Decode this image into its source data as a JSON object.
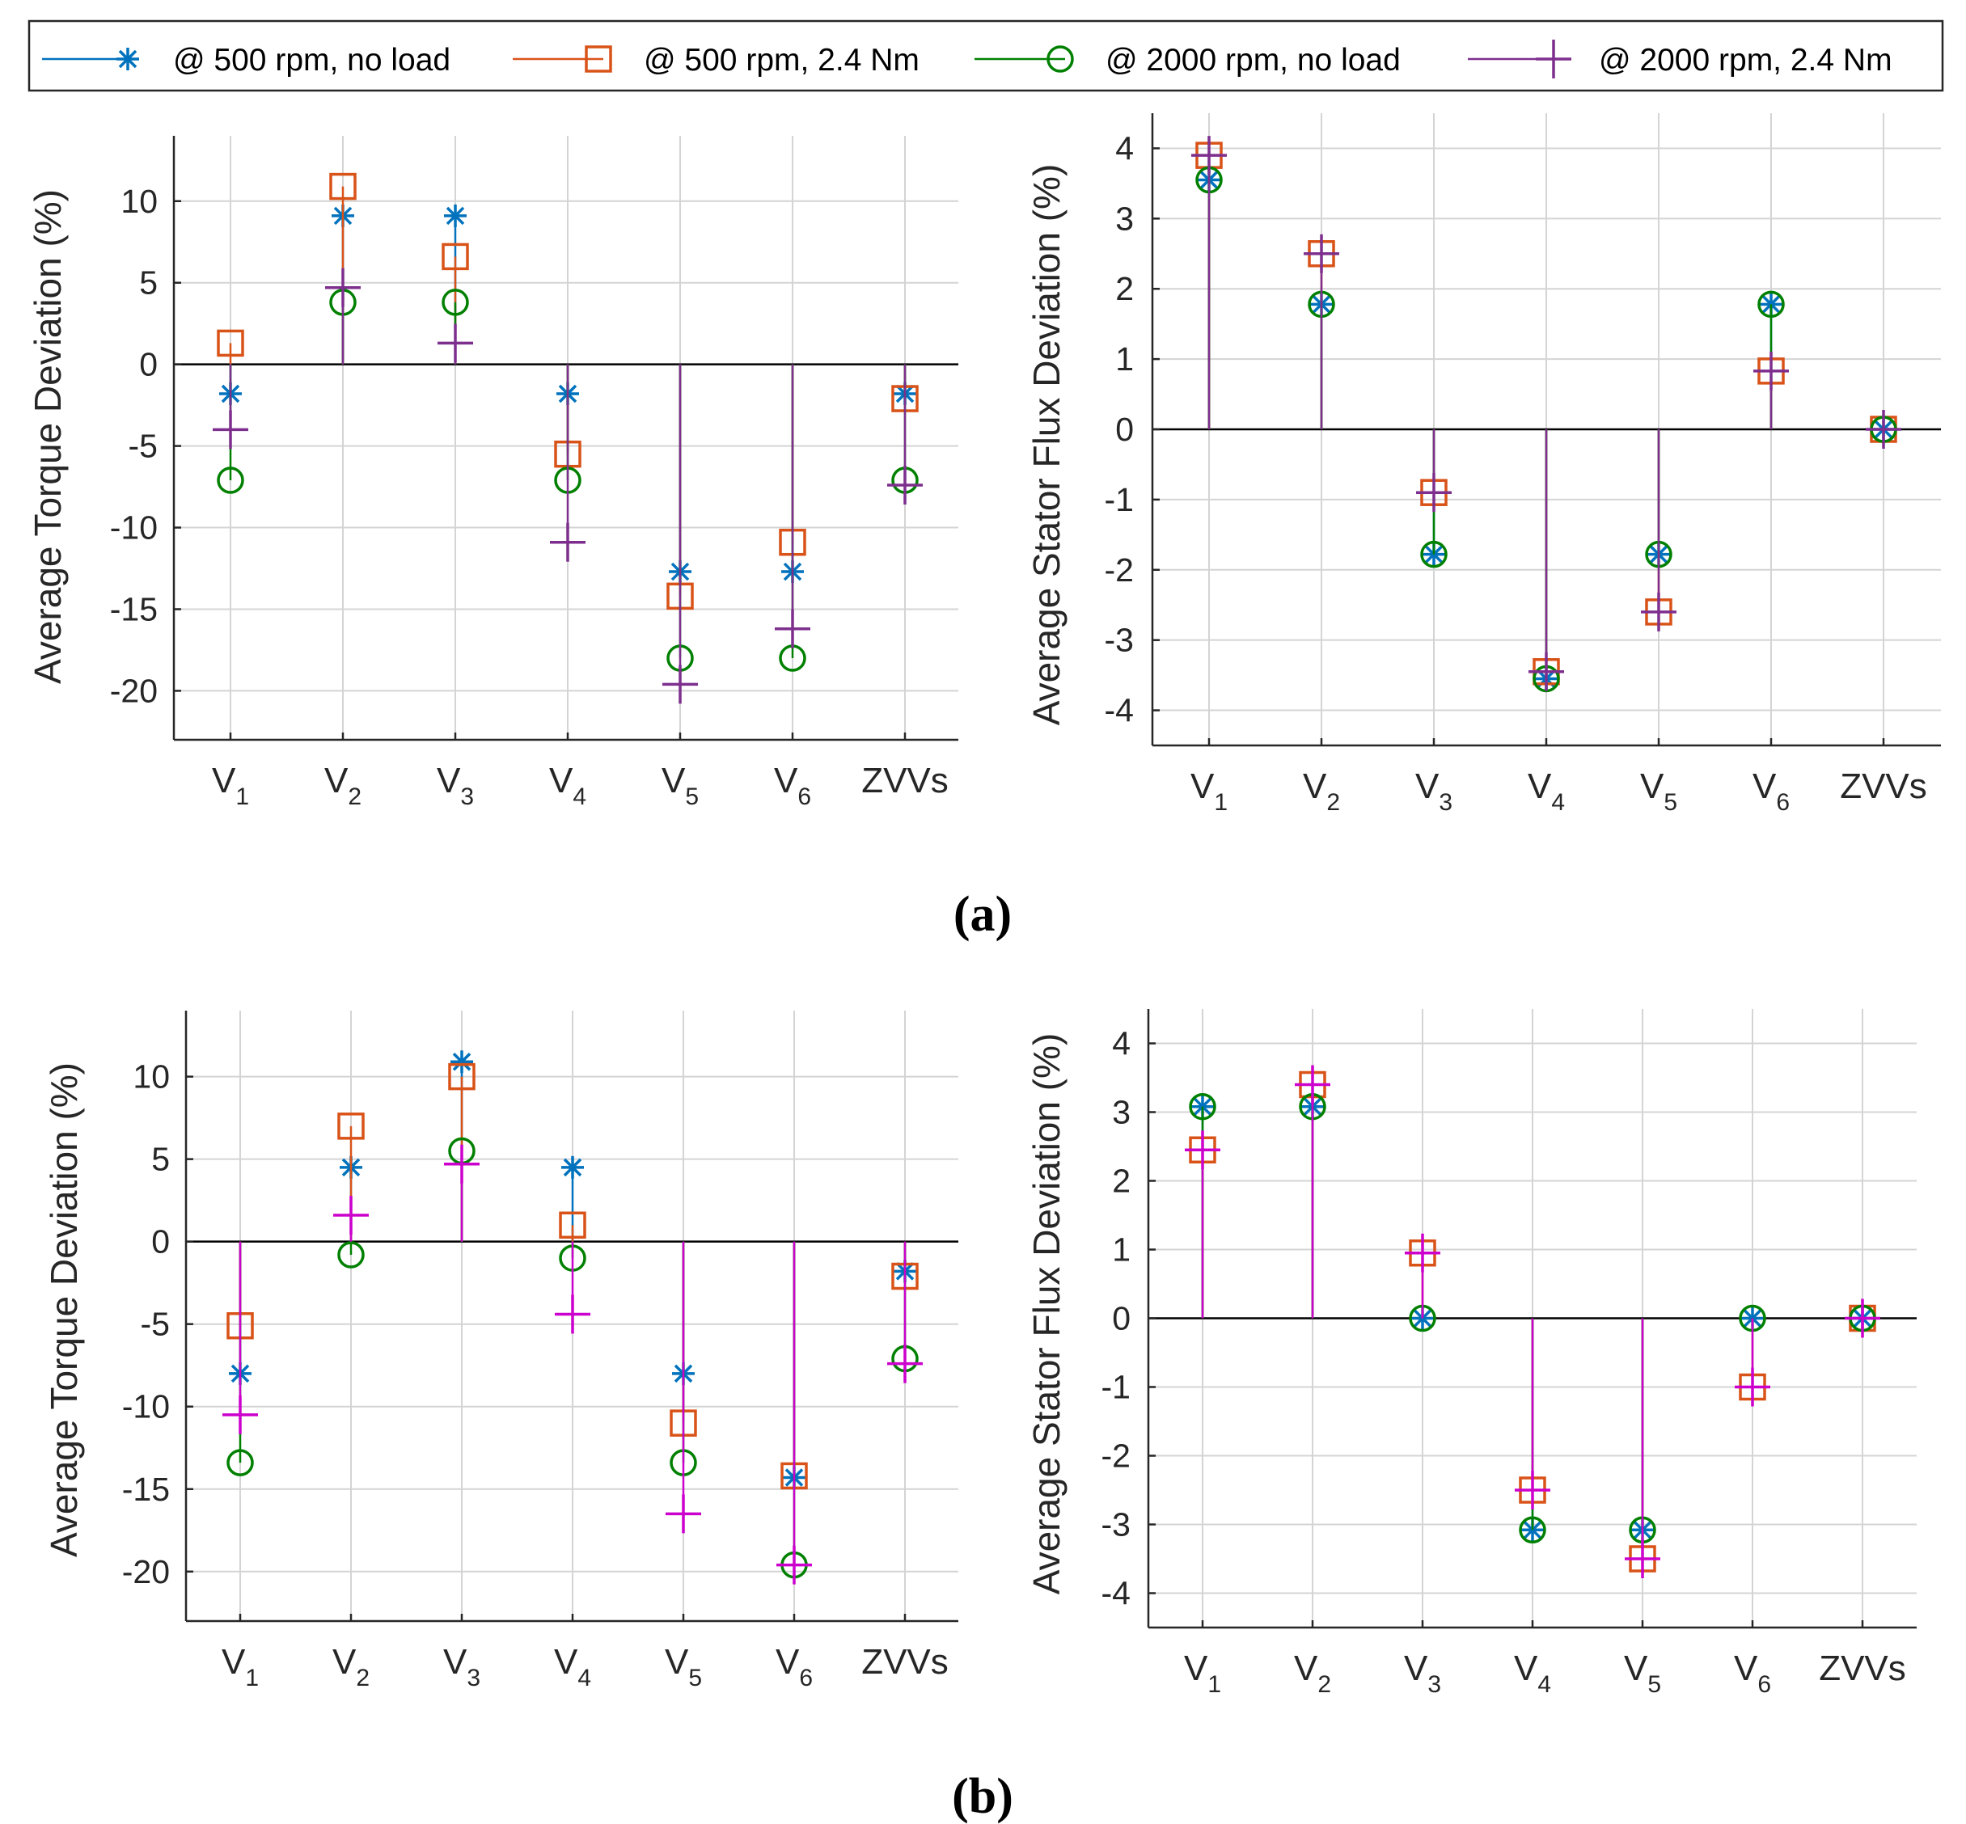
{
  "colors": {
    "s500_noload": "#0072BD",
    "s500_load": "#D95319",
    "s2000_noload": "#008000",
    "s2000_load": "#7E2F8E",
    "s2000_load_alt": "#CC00CC",
    "axis": "#262626",
    "grid": "#d4d4d4",
    "zero_line": "#000000"
  },
  "legend": {
    "entries": [
      {
        "label": "@ 500 rpm, no load",
        "marker": "asterisk",
        "color_key": "s500_noload"
      },
      {
        "label": "@ 500 rpm, 2.4 Nm",
        "marker": "square",
        "color_key": "s500_load"
      },
      {
        "label": "@ 2000 rpm, no load",
        "marker": "circle",
        "color_key": "s2000_noload"
      },
      {
        "label": "@ 2000 rpm, 2.4 Nm",
        "marker": "plus",
        "color_key": "s2000_load"
      }
    ]
  },
  "panel_labels": {
    "a": "(a)",
    "b": "(b)"
  },
  "chart_data": [
    {
      "id": "a-torque",
      "panel": "a",
      "type": "stem",
      "title": "",
      "ylabel": "Average Torque Deviation (%)",
      "xlabel": "",
      "categories": [
        {
          "main": "V",
          "sub": "1"
        },
        {
          "main": "V",
          "sub": "2"
        },
        {
          "main": "V",
          "sub": "3"
        },
        {
          "main": "V",
          "sub": "4"
        },
        {
          "main": "V",
          "sub": "5"
        },
        {
          "main": "V",
          "sub": "6"
        },
        {
          "main": "ZVVs",
          "sub": ""
        }
      ],
      "ylim": [
        -23,
        14
      ],
      "yticks": [
        10,
        5,
        0,
        -5,
        -10,
        -15,
        -20
      ],
      "ytick_labels": [
        "10",
        "5",
        "0",
        "-5",
        "-10",
        "-15",
        "-20"
      ],
      "grid": true,
      "series": [
        {
          "name": "@ 500 rpm, no load",
          "marker": "asterisk",
          "color_key": "s500_noload",
          "values": [
            -1.8,
            9.1,
            9.1,
            -1.8,
            -12.7,
            -12.7,
            -1.8
          ]
        },
        {
          "name": "@ 500 rpm, 2.4 Nm",
          "marker": "square",
          "color_key": "s500_load",
          "values": [
            1.3,
            10.9,
            6.6,
            -5.5,
            -14.2,
            -10.9,
            -2.1
          ]
        },
        {
          "name": "@ 2000 rpm, no load",
          "marker": "circle",
          "color_key": "s2000_noload",
          "values": [
            -7.1,
            3.8,
            3.8,
            -7.1,
            -18.0,
            -18.0,
            -7.1
          ]
        },
        {
          "name": "@ 2000 rpm, 2.4 Nm",
          "marker": "plus",
          "color_key": "s2000_load",
          "values": [
            -4.0,
            4.7,
            1.3,
            -10.9,
            -19.6,
            -16.2,
            -7.4
          ]
        }
      ]
    },
    {
      "id": "a-flux",
      "panel": "a",
      "type": "stem",
      "title": "",
      "ylabel": "Average Stator Flux Deviation (%)",
      "xlabel": "",
      "categories": [
        {
          "main": "V",
          "sub": "1"
        },
        {
          "main": "V",
          "sub": "2"
        },
        {
          "main": "V",
          "sub": "3"
        },
        {
          "main": "V",
          "sub": "4"
        },
        {
          "main": "V",
          "sub": "5"
        },
        {
          "main": "V",
          "sub": "6"
        },
        {
          "main": "ZVVs",
          "sub": ""
        }
      ],
      "ylim": [
        -4.5,
        4.5
      ],
      "yticks": [
        4,
        3,
        2,
        1,
        0,
        -1,
        -2,
        -3,
        -4
      ],
      "ytick_labels": [
        "4",
        "3",
        "2",
        "1",
        "0",
        "-1",
        "-2",
        "-3",
        "-4"
      ],
      "grid": true,
      "series": [
        {
          "name": "@ 500 rpm, no load",
          "marker": "asterisk",
          "color_key": "s500_noload",
          "values": [
            3.55,
            1.78,
            -1.78,
            -3.55,
            -1.78,
            1.78,
            0.0
          ]
        },
        {
          "name": "@ 500 rpm, 2.4 Nm",
          "marker": "square",
          "color_key": "s500_load",
          "values": [
            3.9,
            2.5,
            -0.9,
            -3.45,
            -2.6,
            0.83,
            0.0
          ]
        },
        {
          "name": "@ 2000 rpm, no load",
          "marker": "circle",
          "color_key": "s2000_noload",
          "values": [
            3.55,
            1.78,
            -1.78,
            -3.55,
            -1.78,
            1.78,
            0.0
          ]
        },
        {
          "name": "@ 2000 rpm, 2.4 Nm",
          "marker": "plus",
          "color_key": "s2000_load",
          "values": [
            3.9,
            2.5,
            -0.9,
            -3.45,
            -2.6,
            0.83,
            0.0
          ]
        }
      ]
    },
    {
      "id": "b-torque",
      "panel": "b",
      "type": "stem",
      "title": "",
      "ylabel": "Average Torque Deviation (%)",
      "xlabel": "",
      "categories": [
        {
          "main": "V",
          "sub": "1"
        },
        {
          "main": "V",
          "sub": "2"
        },
        {
          "main": "V",
          "sub": "3"
        },
        {
          "main": "V",
          "sub": "4"
        },
        {
          "main": "V",
          "sub": "5"
        },
        {
          "main": "V",
          "sub": "6"
        },
        {
          "main": "ZVVs",
          "sub": ""
        }
      ],
      "ylim": [
        -23,
        14
      ],
      "yticks": [
        10,
        5,
        0,
        -5,
        -10,
        -15,
        -20
      ],
      "ytick_labels": [
        "10",
        "5",
        "0",
        "-5",
        "-10",
        "-15",
        "-20"
      ],
      "grid": true,
      "series": [
        {
          "name": "@ 500 rpm, no load",
          "marker": "asterisk",
          "color_key": "s500_noload",
          "values": [
            -8.0,
            4.5,
            10.9,
            4.5,
            -8.0,
            -14.3,
            -1.8
          ]
        },
        {
          "name": "@ 500 rpm, 2.4 Nm",
          "marker": "square",
          "color_key": "s500_load",
          "values": [
            -5.1,
            7.0,
            10.0,
            1.0,
            -11.0,
            -14.2,
            -2.1
          ]
        },
        {
          "name": "@ 2000 rpm, no load",
          "marker": "circle",
          "color_key": "s2000_noload",
          "values": [
            -13.4,
            -0.8,
            5.5,
            -1.0,
            -13.4,
            -19.6,
            -7.1
          ]
        },
        {
          "name": "@ 2000 rpm, 2.4 Nm",
          "marker": "plus",
          "color_key": "s2000_load_alt",
          "values": [
            -10.5,
            1.6,
            4.7,
            -4.4,
            -16.5,
            -19.6,
            -7.4
          ]
        }
      ]
    },
    {
      "id": "b-flux",
      "panel": "b",
      "type": "stem",
      "title": "",
      "ylabel": "Average Stator Flux Deviation (%)",
      "xlabel": "",
      "categories": [
        {
          "main": "V",
          "sub": "1"
        },
        {
          "main": "V",
          "sub": "2"
        },
        {
          "main": "V",
          "sub": "3"
        },
        {
          "main": "V",
          "sub": "4"
        },
        {
          "main": "V",
          "sub": "5"
        },
        {
          "main": "V",
          "sub": "6"
        },
        {
          "main": "ZVVs",
          "sub": ""
        }
      ],
      "ylim": [
        -4.5,
        4.5
      ],
      "yticks": [
        4,
        3,
        2,
        1,
        0,
        -1,
        -2,
        -3,
        -4
      ],
      "ytick_labels": [
        "4",
        "3",
        "2",
        "1",
        "0",
        "-1",
        "-2",
        "-3",
        "-4"
      ],
      "grid": true,
      "series": [
        {
          "name": "@ 500 rpm, no load",
          "marker": "asterisk",
          "color_key": "s500_noload",
          "values": [
            3.08,
            3.08,
            0.0,
            -3.08,
            -3.08,
            0.0,
            0.0
          ]
        },
        {
          "name": "@ 500 rpm, 2.4 Nm",
          "marker": "square",
          "color_key": "s500_load",
          "values": [
            2.45,
            3.4,
            0.95,
            -2.5,
            -3.5,
            -1.0,
            0.0
          ]
        },
        {
          "name": "@ 2000 rpm, no load",
          "marker": "circle",
          "color_key": "s2000_noload",
          "values": [
            3.08,
            3.08,
            0.0,
            -3.08,
            -3.08,
            0.0,
            0.0
          ]
        },
        {
          "name": "@ 2000 rpm, 2.4 Nm",
          "marker": "plus",
          "color_key": "s2000_load_alt",
          "values": [
            2.45,
            3.4,
            0.95,
            -2.5,
            -3.5,
            -1.0,
            0.0
          ]
        }
      ]
    }
  ]
}
